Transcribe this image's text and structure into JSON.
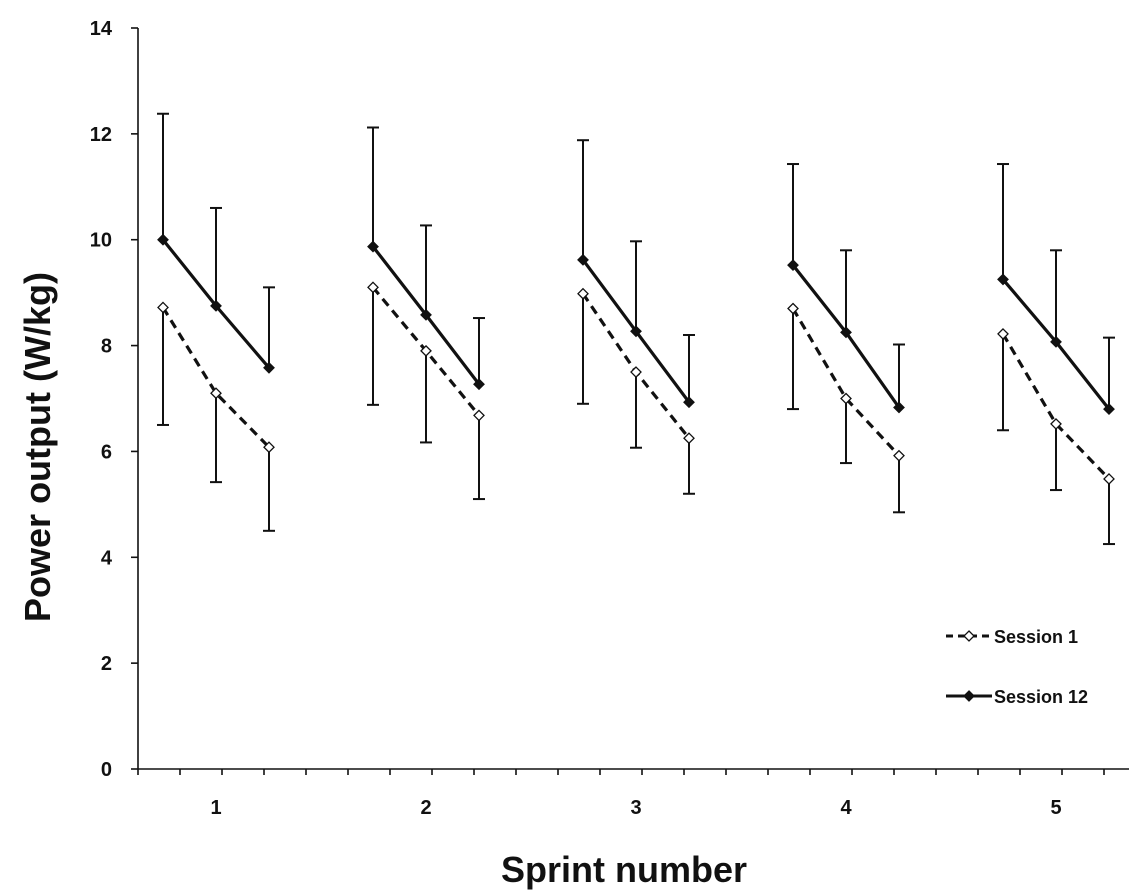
{
  "chart_data": {
    "type": "line",
    "xlabel": "Sprint number",
    "ylabel": "Power output (W/kg)",
    "ylim": [
      0,
      14
    ],
    "y_ticks": [
      "0",
      "2",
      "4",
      "6",
      "8",
      "10",
      "12",
      "14"
    ],
    "categories": [
      "1",
      "2",
      "3",
      "4",
      "5"
    ],
    "points_per_sprint": 3,
    "error_bars": "one-sided",
    "grid": false,
    "legend_position": "bottom-right",
    "series": [
      {
        "name": "Session 1",
        "line_style": "dashed",
        "marker": "open-diamond",
        "color": "#111111",
        "error_direction": "down",
        "values": [
          [
            8.72,
            7.1,
            6.08
          ],
          [
            9.1,
            7.9,
            6.68
          ],
          [
            8.98,
            7.5,
            6.25
          ],
          [
            8.7,
            7.0,
            5.92
          ],
          [
            8.22,
            6.52,
            5.48
          ]
        ],
        "error_bounds": [
          [
            6.5,
            5.42,
            4.5
          ],
          [
            6.88,
            6.17,
            5.1
          ],
          [
            6.9,
            6.07,
            5.2
          ],
          [
            6.8,
            5.78,
            4.85
          ],
          [
            6.4,
            5.27,
            4.25
          ]
        ]
      },
      {
        "name": "Session 12",
        "line_style": "solid",
        "marker": "filled-diamond",
        "color": "#111111",
        "error_direction": "up",
        "values": [
          [
            10.0,
            8.75,
            7.58
          ],
          [
            9.87,
            8.58,
            7.27
          ],
          [
            9.62,
            8.27,
            6.93
          ],
          [
            9.52,
            8.25,
            6.83
          ],
          [
            9.25,
            8.07,
            6.8
          ]
        ],
        "error_bounds": [
          [
            12.38,
            10.6,
            9.1
          ],
          [
            12.12,
            10.27,
            8.52
          ],
          [
            11.88,
            9.97,
            8.2
          ],
          [
            11.43,
            9.8,
            8.02
          ],
          [
            11.43,
            9.8,
            8.15
          ]
        ]
      }
    ]
  }
}
